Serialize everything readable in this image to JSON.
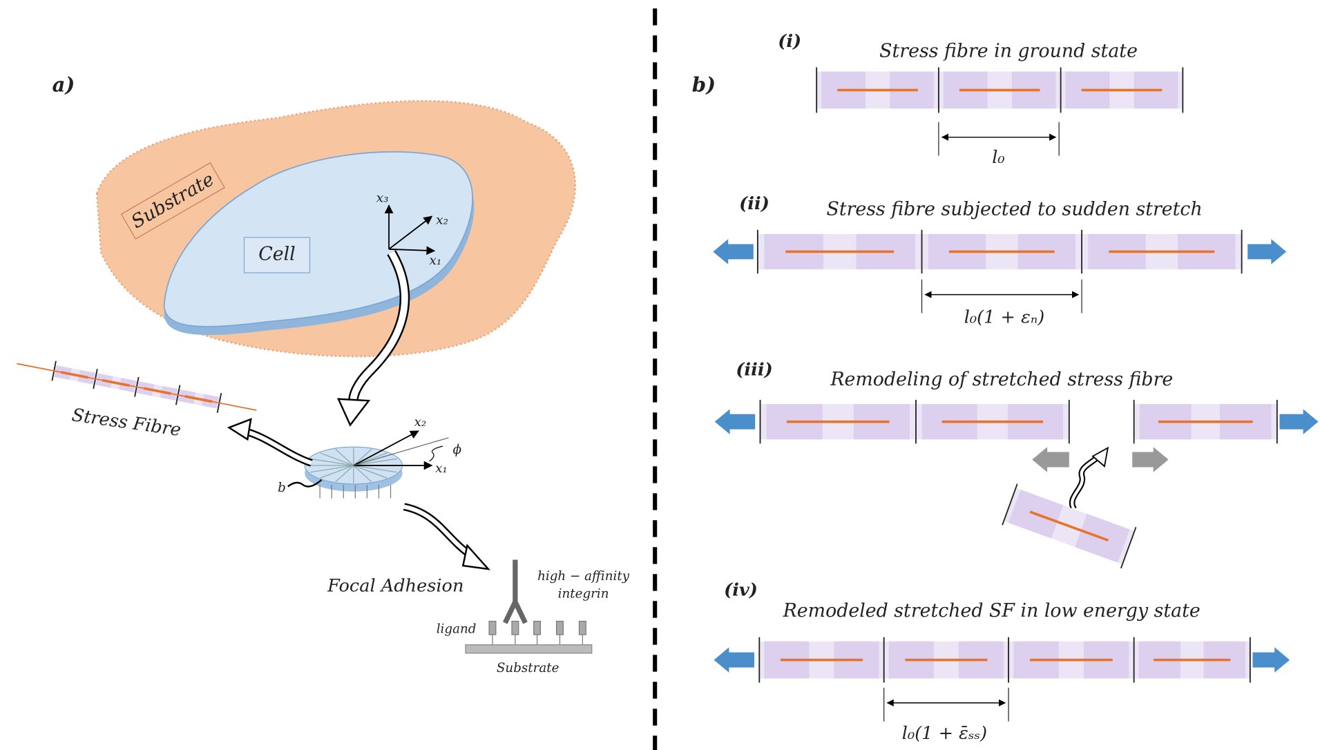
{
  "panel_a": {
    "label": "a)",
    "substrate_label": "Substrate",
    "cell_label": "Cell",
    "cell_axes": [
      "x₃",
      "x₂",
      "x₁"
    ],
    "stress_fibre_label": "Stress Fibre",
    "focal_adhesion_label": "Focal Adhesion",
    "adhesion_axes": [
      "x₂",
      "x₁"
    ],
    "angle_label": "ϕ",
    "radius_label": "b",
    "integrin_label": [
      "high − affinity",
      "integrin"
    ],
    "ligand_label": "ligand",
    "base_label": "Substrate"
  },
  "panel_b": {
    "label": "b)",
    "states": [
      {
        "index": "(i)",
        "title": "Stress fibre in ground state",
        "length": "l₀"
      },
      {
        "index": "(ii)",
        "title": "Stress fibre subjected to sudden stretch",
        "length": "l₀(1 + εₙ)"
      },
      {
        "index": "(iii)",
        "title": "Remodeling of stretched stress fibre"
      },
      {
        "index": "(iv)",
        "title": "Remodeled stretched SF in low energy state",
        "length": "l₀(1 + ε̄ₛₛ)"
      }
    ]
  }
}
